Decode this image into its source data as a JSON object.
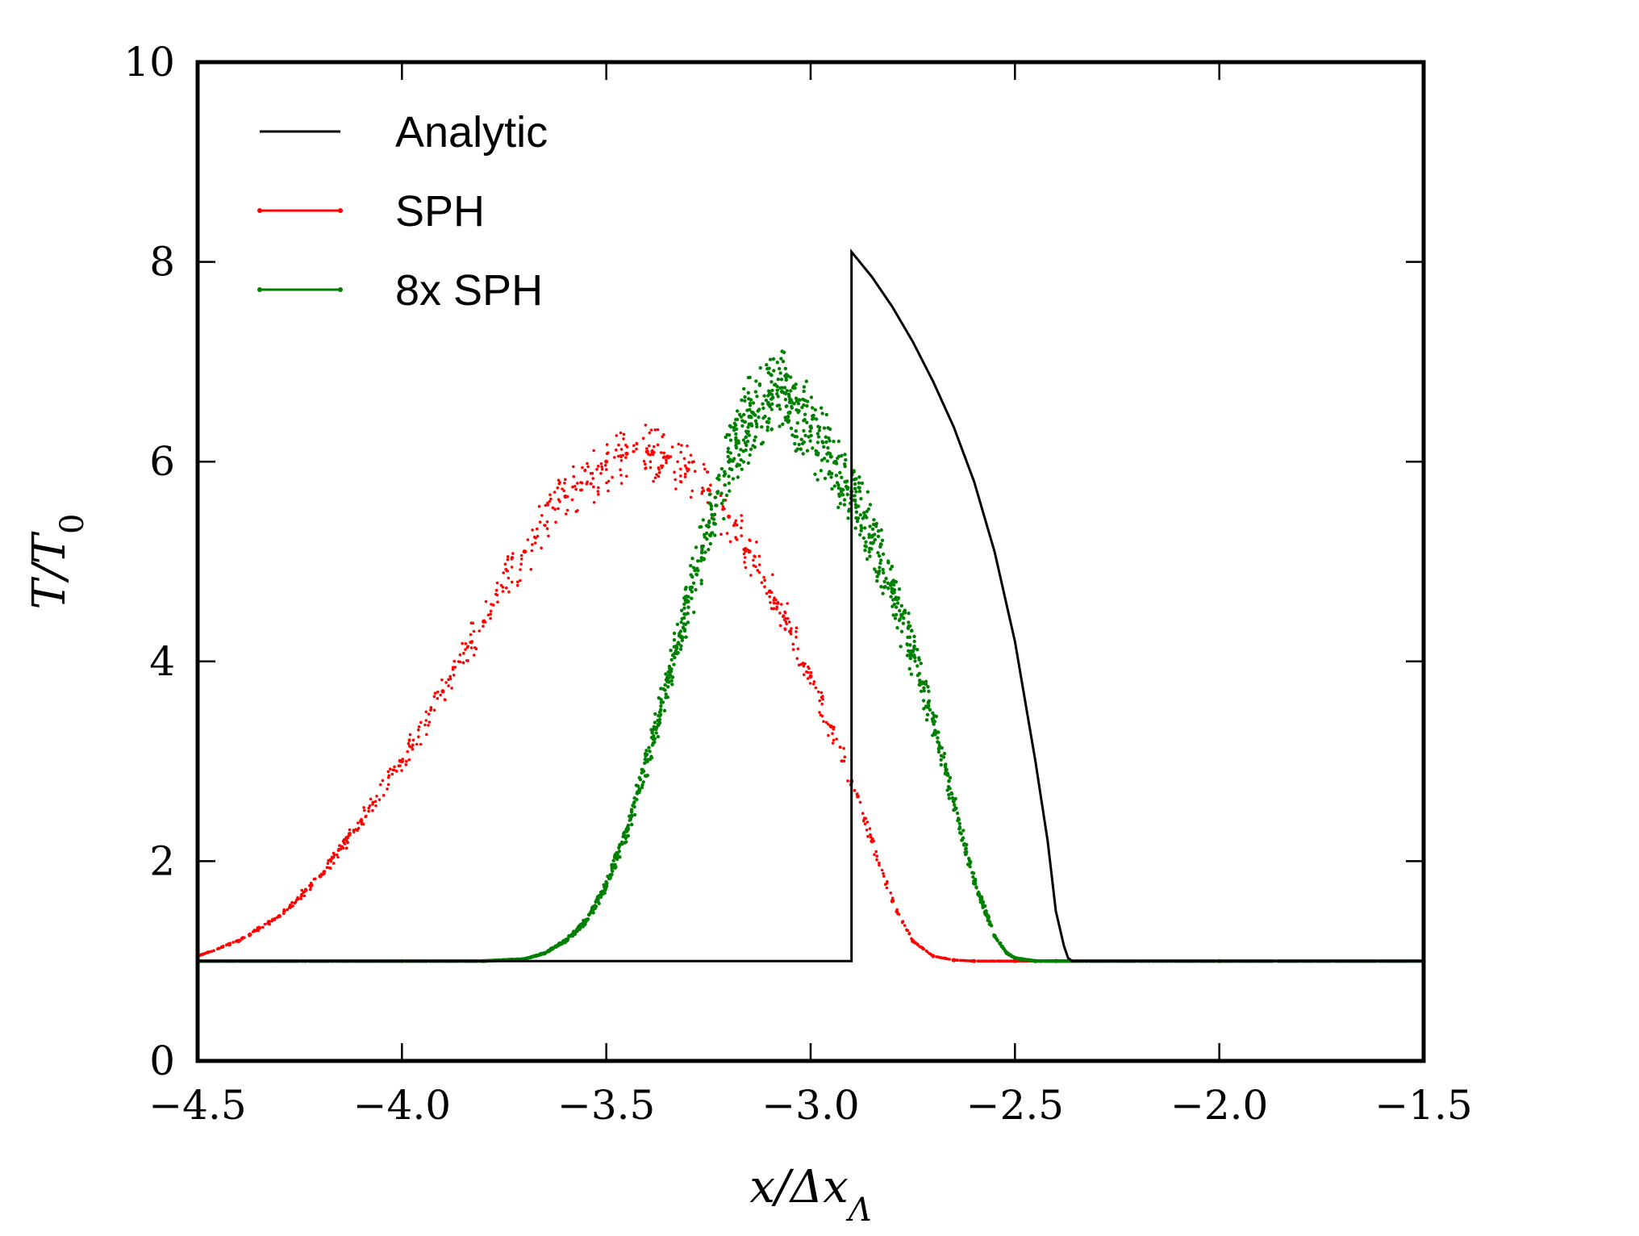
{
  "chart_data": {
    "type": "line",
    "title": "",
    "xlabel": "x/Δx_Λ",
    "ylabel": "T/T_0",
    "xlim": [
      -4.5,
      -1.5
    ],
    "ylim": [
      0,
      10
    ],
    "xticks": [
      -4.5,
      -4.0,
      -3.5,
      -3.0,
      -2.5,
      -2.0,
      -1.5
    ],
    "yticks": [
      0,
      2,
      4,
      6,
      8,
      10
    ],
    "xtick_labels": [
      "−4.5",
      "−4.0",
      "−3.5",
      "−3.0",
      "−2.5",
      "−2.0",
      "−1.5"
    ],
    "ytick_labels": [
      "0",
      "2",
      "4",
      "6",
      "8",
      "10"
    ],
    "legend_position": "top-left",
    "series": [
      {
        "name": "Analytic",
        "style": "line",
        "color": "#000000",
        "x": [
          -4.5,
          -2.9,
          -2.9,
          -2.85,
          -2.8,
          -2.75,
          -2.7,
          -2.65,
          -2.6,
          -2.55,
          -2.5,
          -2.45,
          -2.42,
          -2.4,
          -2.38,
          -2.37,
          -2.36,
          -2.0,
          -1.5
        ],
        "y": [
          1.0,
          1.0,
          8.1,
          7.85,
          7.55,
          7.2,
          6.8,
          6.35,
          5.8,
          5.1,
          4.2,
          3.0,
          2.2,
          1.5,
          1.15,
          1.03,
          1.0,
          1.0,
          1.0
        ]
      },
      {
        "name": "SPH",
        "style": "scatter",
        "color": "#ff0000",
        "x": [
          -4.5,
          -4.4,
          -4.3,
          -4.2,
          -4.1,
          -4.0,
          -3.9,
          -3.8,
          -3.7,
          -3.6,
          -3.5,
          -3.45,
          -3.4,
          -3.35,
          -3.3,
          -3.25,
          -3.2,
          -3.15,
          -3.1,
          -3.05,
          -3.0,
          -2.95,
          -2.9,
          -2.85,
          -2.8,
          -2.75,
          -2.7,
          -2.65,
          -2.6,
          -2.5,
          -2.4,
          -2.0,
          -1.5
        ],
        "y": [
          1.05,
          1.2,
          1.45,
          1.85,
          2.4,
          3.0,
          3.7,
          4.4,
          5.1,
          5.65,
          6.0,
          6.08,
          6.1,
          6.05,
          5.92,
          5.72,
          5.45,
          5.1,
          4.7,
          4.3,
          3.85,
          3.35,
          2.8,
          2.2,
          1.6,
          1.2,
          1.05,
          1.01,
          1.0,
          1.0,
          1.0,
          1.0,
          1.0
        ]
      },
      {
        "name": "8x SPH",
        "style": "scatter",
        "color": "#008000",
        "x": [
          -4.5,
          -4.0,
          -3.8,
          -3.7,
          -3.65,
          -3.6,
          -3.55,
          -3.5,
          -3.45,
          -3.4,
          -3.35,
          -3.3,
          -3.25,
          -3.2,
          -3.15,
          -3.1,
          -3.07,
          -3.05,
          -3.0,
          -2.95,
          -2.9,
          -2.85,
          -2.8,
          -2.75,
          -2.7,
          -2.65,
          -2.6,
          -2.55,
          -2.52,
          -2.5,
          -2.45,
          -2.4,
          -2.0,
          -1.5
        ],
        "y": [
          1.0,
          1.0,
          1.0,
          1.02,
          1.08,
          1.2,
          1.4,
          1.75,
          2.3,
          3.0,
          3.8,
          4.6,
          5.35,
          6.0,
          6.45,
          6.68,
          6.7,
          6.62,
          6.35,
          6.05,
          5.7,
          5.25,
          4.7,
          4.1,
          3.4,
          2.6,
          1.8,
          1.25,
          1.08,
          1.03,
          1.0,
          1.0,
          1.0,
          1.0
        ]
      }
    ]
  }
}
